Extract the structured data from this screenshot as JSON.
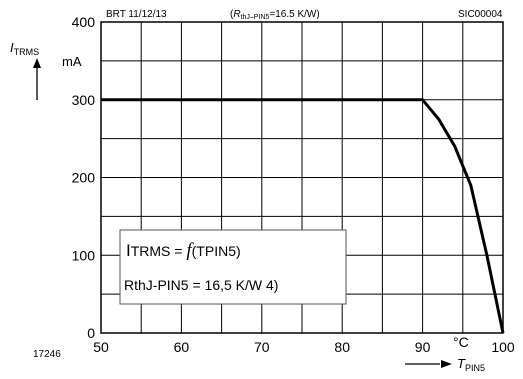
{
  "chart_data": {
    "type": "line",
    "header_left": "BRT 11/12/13",
    "header_mid_open": "(",
    "header_mid_sym": "R",
    "header_mid_sub": "thJ–PIN5",
    "header_mid_rest": "=16.5 K/W)",
    "header_right": "SIC00004",
    "ylabel_sym": "I",
    "ylabel_sub": "TRMS",
    "yunit": "mA",
    "xlabel_sym": "T",
    "xlabel_sub": "PIN5",
    "xunit": "°C",
    "figure_id": "17246",
    "annotation_line1_a": "I",
    "annotation_line1_b": "TRMS = ",
    "annotation_line1_c": "f",
    "annotation_line1_d": "(TPIN5)",
    "annotation_line2": "RthJ-PIN5 = 16,5 K/W 4)",
    "xlim": [
      50,
      100
    ],
    "ylim": [
      0,
      400
    ],
    "xticks": [
      50,
      60,
      70,
      80,
      90,
      100
    ],
    "yticks": [
      0,
      100,
      200,
      300,
      400
    ],
    "grid": true,
    "series": [
      {
        "x": [
          50,
          90,
          92,
          94,
          96,
          98,
          100
        ],
        "y": [
          300,
          300,
          275,
          240,
          190,
          100,
          0
        ]
      }
    ]
  }
}
